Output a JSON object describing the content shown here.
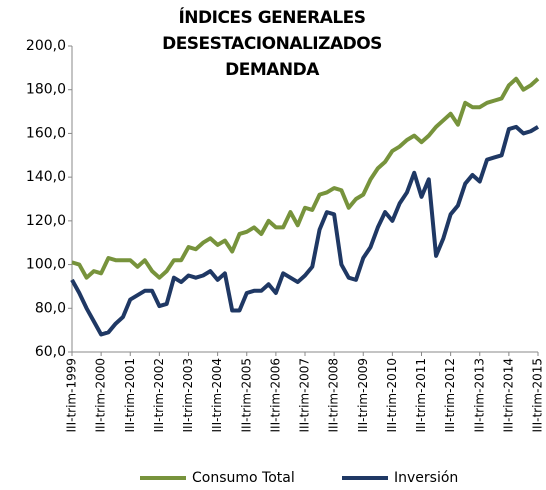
{
  "chart_data": {
    "type": "line",
    "title": [
      "ÍNDICES GENERALES",
      "DESESTACIONALIZADOS",
      "DEMANDA"
    ],
    "categories": [
      "III-trim-1999",
      null,
      null,
      null,
      "III-trim-2000",
      null,
      null,
      null,
      "III-trim-2001",
      null,
      null,
      null,
      "III-trim-2002",
      null,
      null,
      null,
      "III-trim-2003",
      null,
      null,
      null,
      "III-trim-2004",
      null,
      null,
      null,
      "III-trim-2005",
      null,
      null,
      null,
      "III-trim-2006",
      null,
      null,
      null,
      "III-trim-2007",
      null,
      null,
      null,
      "III-trim-2008",
      null,
      null,
      null,
      "III-trim-2009",
      null,
      null,
      null,
      "III-trim-2010",
      null,
      null,
      null,
      "III-trim-2011",
      null,
      null,
      null,
      "III-trim-2012",
      null,
      null,
      null,
      "III-trim-2013",
      null,
      null,
      null,
      "III-trim-2014",
      null,
      null,
      null,
      "III-trim-2015"
    ],
    "series": [
      {
        "name": "Consumo Total",
        "color": "#77933c",
        "values": [
          101,
          100,
          94,
          97,
          96,
          103,
          102,
          102,
          102,
          99,
          102,
          97,
          94,
          97,
          102,
          102,
          108,
          107,
          110,
          112,
          109,
          111,
          106,
          114,
          115,
          117,
          114,
          120,
          117,
          117,
          124,
          118,
          126,
          125,
          132,
          133,
          135,
          134,
          126,
          130,
          132,
          139,
          144,
          147,
          152,
          154,
          157,
          159,
          156,
          159,
          163,
          166,
          169,
          164,
          174,
          172,
          172,
          174,
          175,
          176,
          182,
          185,
          180,
          182,
          185
        ]
      },
      {
        "name": "Inversión",
        "color": "#1f3864",
        "values": [
          93,
          87,
          80,
          74,
          68,
          69,
          73,
          76,
          84,
          86,
          88,
          88,
          81,
          82,
          94,
          92,
          95,
          94,
          95,
          97,
          93,
          96,
          79,
          79,
          87,
          88,
          88,
          91,
          87,
          96,
          94,
          92,
          95,
          99,
          116,
          124,
          123,
          100,
          94,
          93,
          103,
          108,
          117,
          124,
          120,
          128,
          133,
          142,
          131,
          139,
          104,
          112,
          123,
          127,
          137,
          141,
          138,
          148,
          149,
          150,
          162,
          163,
          160,
          161,
          163
        ]
      }
    ],
    "ylim": [
      60,
      200
    ],
    "yticks": [
      {
        "value": 60,
        "label": "60,0"
      },
      {
        "value": 80,
        "label": "80,0"
      },
      {
        "value": 100,
        "label": "100,0"
      },
      {
        "value": 120,
        "label": "120,0"
      },
      {
        "value": 140,
        "label": "140,0"
      },
      {
        "value": 160,
        "label": "160,0"
      },
      {
        "value": 180,
        "label": "180,0"
      },
      {
        "value": 200,
        "label": "200,0"
      }
    ],
    "grid": false,
    "legend": "bottom"
  }
}
